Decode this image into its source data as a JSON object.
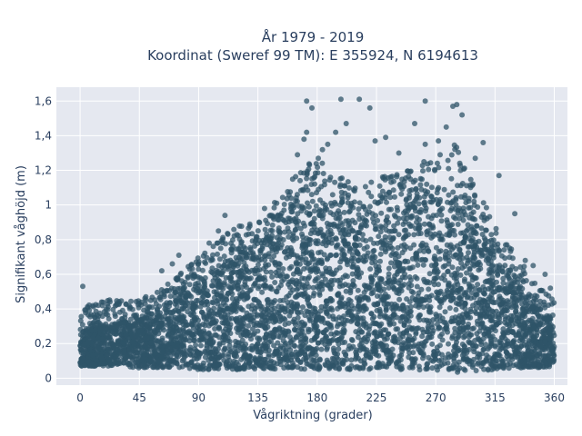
{
  "chart_data": {
    "type": "scatter",
    "title_line1": "År 1979 - 2019",
    "title_line2": "Koordinat (Sweref 99 TM): E 355924, N 6194613",
    "xlabel": "Vågriktning (grader)",
    "ylabel": "Signifikant våghöjd (m)",
    "xlim": [
      -18,
      370
    ],
    "ylim": [
      -0.04,
      1.68
    ],
    "xticks": [
      0,
      45,
      90,
      135,
      180,
      225,
      270,
      315,
      360
    ],
    "xtick_labels": [
      "0",
      "45",
      "90",
      "135",
      "180",
      "225",
      "270",
      "315",
      "360"
    ],
    "yticks": [
      0,
      0.2,
      0.4,
      0.6,
      0.8,
      1.0,
      1.2,
      1.4,
      1.6
    ],
    "ytick_labels": [
      "0",
      "0,2",
      "0,4",
      "0,6",
      "0,8",
      "1",
      "1,2",
      "1,4",
      "1,6"
    ],
    "grid": true,
    "marker_color": "#2f5468",
    "plot_bg": "#e5e8f0",
    "envelope": {
      "x": [
        0,
        15,
        30,
        45,
        60,
        75,
        90,
        105,
        120,
        135,
        150,
        165,
        180,
        195,
        210,
        225,
        240,
        255,
        270,
        285,
        300,
        315,
        330,
        345,
        360
      ],
      "y_min": [
        0.07,
        0.07,
        0.07,
        0.06,
        0.06,
        0.06,
        0.05,
        0.05,
        0.05,
        0.05,
        0.05,
        0.05,
        0.05,
        0.05,
        0.05,
        0.05,
        0.05,
        0.05,
        0.04,
        0.03,
        0.04,
        0.05,
        0.06,
        0.06,
        0.07
      ],
      "y_max": [
        0.4,
        0.45,
        0.46,
        0.45,
        0.52,
        0.6,
        0.7,
        0.8,
        0.88,
        0.9,
        1.05,
        1.2,
        1.3,
        1.2,
        1.1,
        1.15,
        1.2,
        1.25,
        1.3,
        1.35,
        1.1,
        0.9,
        0.75,
        0.55,
        0.45
      ],
      "y_core": [
        0.28,
        0.3,
        0.32,
        0.34,
        0.4,
        0.48,
        0.56,
        0.64,
        0.7,
        0.76,
        0.85,
        0.95,
        1.0,
        0.95,
        0.92,
        0.95,
        1.0,
        1.02,
        1.05,
        1.05,
        0.85,
        0.7,
        0.55,
        0.42,
        0.34
      ]
    },
    "outliers": [
      {
        "x": 2,
        "y": 0.53
      },
      {
        "x": 62,
        "y": 0.62
      },
      {
        "x": 70,
        "y": 0.66
      },
      {
        "x": 75,
        "y": 0.71
      },
      {
        "x": 98,
        "y": 0.78
      },
      {
        "x": 105,
        "y": 0.85
      },
      {
        "x": 110,
        "y": 0.94
      },
      {
        "x": 140,
        "y": 0.98
      },
      {
        "x": 165,
        "y": 1.29
      },
      {
        "x": 170,
        "y": 1.38
      },
      {
        "x": 172,
        "y": 1.42
      },
      {
        "x": 172,
        "y": 1.6
      },
      {
        "x": 176,
        "y": 1.56
      },
      {
        "x": 184,
        "y": 1.32
      },
      {
        "x": 188,
        "y": 1.35
      },
      {
        "x": 194,
        "y": 1.42
      },
      {
        "x": 198,
        "y": 1.61
      },
      {
        "x": 202,
        "y": 1.47
      },
      {
        "x": 212,
        "y": 1.61
      },
      {
        "x": 220,
        "y": 1.56
      },
      {
        "x": 224,
        "y": 1.37
      },
      {
        "x": 232,
        "y": 1.39
      },
      {
        "x": 242,
        "y": 1.3
      },
      {
        "x": 254,
        "y": 1.47
      },
      {
        "x": 262,
        "y": 1.35
      },
      {
        "x": 262,
        "y": 1.6
      },
      {
        "x": 272,
        "y": 1.37
      },
      {
        "x": 278,
        "y": 1.45
      },
      {
        "x": 283,
        "y": 1.57
      },
      {
        "x": 286,
        "y": 1.58
      },
      {
        "x": 290,
        "y": 1.52
      },
      {
        "x": 300,
        "y": 1.27
      },
      {
        "x": 306,
        "y": 1.36
      },
      {
        "x": 318,
        "y": 1.17
      },
      {
        "x": 330,
        "y": 0.95
      },
      {
        "x": 338,
        "y": 0.68
      },
      {
        "x": 344,
        "y": 0.65
      },
      {
        "x": 353,
        "y": 0.6
      },
      {
        "x": 357,
        "y": 0.52
      }
    ]
  }
}
